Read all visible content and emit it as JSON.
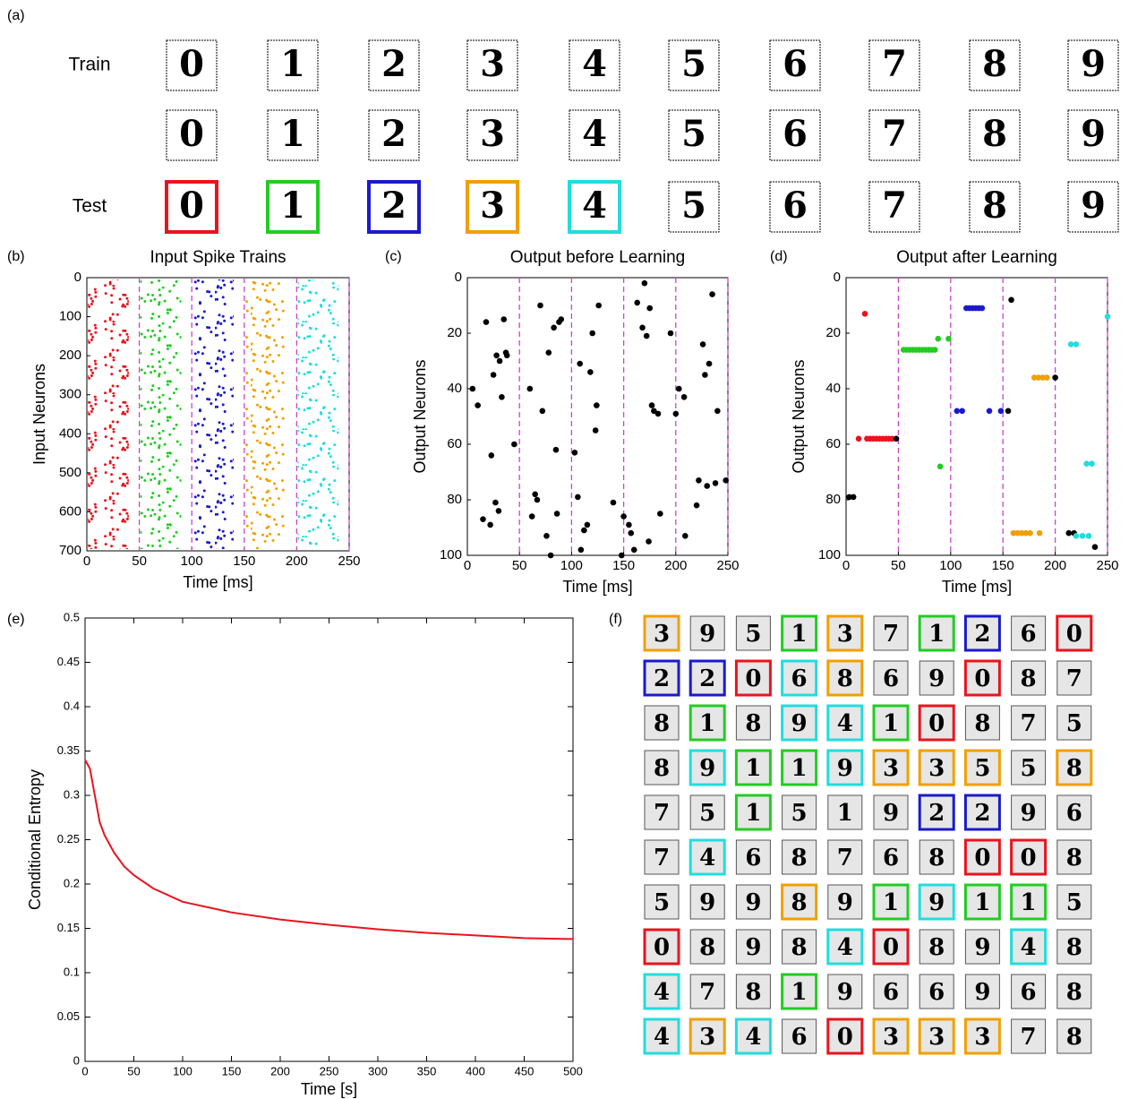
{
  "panel_a": {
    "label": "(a)",
    "row_labels": [
      "Train",
      null,
      "Test"
    ],
    "rows": [
      [
        {
          "digit": "0",
          "border": null,
          "ink": "#000"
        },
        {
          "digit": "1",
          "border": null,
          "ink": "#000"
        },
        {
          "digit": "2",
          "border": null,
          "ink": "#000"
        },
        {
          "digit": "3",
          "border": null,
          "ink": "#000"
        },
        {
          "digit": "4",
          "border": null,
          "ink": "#000"
        },
        {
          "digit": "5",
          "border": null,
          "ink": "#000"
        },
        {
          "digit": "6",
          "border": null,
          "ink": "#000"
        },
        {
          "digit": "7",
          "border": null,
          "ink": "#000"
        },
        {
          "digit": "8",
          "border": null,
          "ink": "#000"
        },
        {
          "digit": "9",
          "border": null,
          "ink": "#000"
        }
      ],
      [
        {
          "digit": "0",
          "border": null,
          "ink": "#000"
        },
        {
          "digit": "1",
          "border": null,
          "ink": "#000"
        },
        {
          "digit": "2",
          "border": null,
          "ink": "#000"
        },
        {
          "digit": "3",
          "border": null,
          "ink": "#000"
        },
        {
          "digit": "4",
          "border": null,
          "ink": "#000"
        },
        {
          "digit": "5",
          "border": null,
          "ink": "#000"
        },
        {
          "digit": "6",
          "border": null,
          "ink": "#000"
        },
        {
          "digit": "7",
          "border": null,
          "ink": "#000"
        },
        {
          "digit": "8",
          "border": null,
          "ink": "#000"
        },
        {
          "digit": "9",
          "border": null,
          "ink": "#000"
        }
      ],
      [
        {
          "digit": "0",
          "border": "#e8141e",
          "ink": "#000"
        },
        {
          "digit": "1",
          "border": "#22cc22",
          "ink": "#000"
        },
        {
          "digit": "2",
          "border": "#1a1acc",
          "ink": "#000"
        },
        {
          "digit": "3",
          "border": "#f0a000",
          "ink": "#000"
        },
        {
          "digit": "4",
          "border": "#22dddd",
          "ink": "#000"
        },
        {
          "digit": "5",
          "border": null,
          "ink": "#aaa"
        },
        {
          "digit": "6",
          "border": null,
          "ink": "#aaa"
        },
        {
          "digit": "7",
          "border": null,
          "ink": "#aaa"
        },
        {
          "digit": "8",
          "border": null,
          "ink": "#aaa"
        },
        {
          "digit": "9",
          "border": null,
          "ink": "#aaa"
        }
      ]
    ]
  },
  "chart_data": [
    {
      "type": "raster",
      "panel_label": "(b)",
      "title": "Input Spike Trains",
      "x_label": "Time [ms]",
      "y_label": "Input Neurons",
      "xlim": [
        0,
        250
      ],
      "xticks": [
        0,
        50,
        100,
        150,
        200,
        250
      ],
      "ylim": [
        0,
        700
      ],
      "yticks": [
        0,
        100,
        200,
        300,
        400,
        500,
        600,
        700
      ],
      "y_reversed": true,
      "dividers": [
        50,
        100,
        150,
        200,
        250
      ],
      "divider_color": "#cc44cc",
      "bands": [
        {
          "color": "#e8141e",
          "interval": [
            1,
            40
          ]
        },
        {
          "color": "#22cc22",
          "interval": [
            51,
            90
          ]
        },
        {
          "color": "#1a1acc",
          "interval": [
            101,
            140
          ]
        },
        {
          "color": "#f0a000",
          "interval": [
            151,
            190
          ]
        },
        {
          "color": "#22dddd",
          "interval": [
            201,
            240
          ]
        }
      ]
    },
    {
      "type": "scatter",
      "panel_label": "(c)",
      "title": "Output before Learning",
      "x_label": "Time [ms]",
      "y_label": "Output Neurons",
      "xlim": [
        0,
        250
      ],
      "xticks": [
        0,
        50,
        100,
        150,
        200,
        250
      ],
      "ylim": [
        0,
        100
      ],
      "yticks": [
        0,
        20,
        40,
        60,
        80,
        100
      ],
      "y_reversed": true,
      "dividers": [
        50,
        100,
        150,
        200,
        250
      ],
      "divider_color": "#cc44cc",
      "series": [
        {
          "color": "#000",
          "x": [
            5,
            10,
            15,
            18,
            22,
            23,
            25,
            27,
            28,
            30,
            31,
            33,
            35,
            37,
            38,
            45,
            60,
            62,
            65,
            67,
            70,
            72,
            76,
            78,
            80,
            83,
            85,
            86,
            88,
            90,
            103,
            106,
            108,
            109,
            112,
            115,
            118,
            120,
            123,
            124,
            126,
            140,
            148,
            150,
            155,
            157,
            160,
            163,
            168,
            170,
            172,
            174,
            175,
            177,
            179,
            183,
            185,
            195,
            200,
            203,
            208,
            209,
            220,
            222,
            226,
            228,
            230,
            232,
            235,
            238,
            240,
            248
          ],
          "values": [
            40,
            46,
            87,
            16,
            89,
            64,
            35,
            81,
            28,
            84,
            30,
            43,
            15,
            27,
            28,
            60,
            40,
            86,
            78,
            80,
            10,
            48,
            93,
            27,
            100,
            18,
            62,
            85,
            16,
            15,
            63,
            79,
            31,
            98,
            91,
            89,
            34,
            20,
            55,
            46,
            10,
            81,
            100,
            86,
            89,
            92,
            98,
            9,
            18,
            2,
            21,
            95,
            11,
            46,
            48,
            49,
            85,
            20,
            49,
            40,
            43,
            93,
            82,
            73,
            24,
            35,
            75,
            31,
            6,
            74,
            48,
            73
          ]
        }
      ]
    },
    {
      "type": "scatter",
      "panel_label": "(d)",
      "title": "Output after Learning",
      "x_label": "Time [ms]",
      "y_label": "Output Neurons",
      "xlim": [
        0,
        250
      ],
      "xticks": [
        0,
        50,
        100,
        150,
        200,
        250
      ],
      "ylim": [
        0,
        100
      ],
      "yticks": [
        0,
        20,
        40,
        60,
        80,
        100
      ],
      "y_reversed": true,
      "dividers": [
        50,
        100,
        150,
        200,
        250
      ],
      "divider_color": "#cc44cc",
      "series": [
        {
          "color": "#e8141e",
          "x": [
            12,
            18,
            20,
            23,
            26,
            29,
            32,
            35,
            38,
            41,
            44
          ],
          "values": [
            58,
            13,
            58,
            58,
            58,
            58,
            58,
            58,
            58,
            58,
            58
          ]
        },
        {
          "color": "#000",
          "x": [
            3,
            7,
            48,
            158,
            155,
            200,
            213,
            218,
            238
          ],
          "values": [
            79,
            79,
            58,
            8,
            48,
            36,
            92,
            92,
            97
          ]
        },
        {
          "color": "#22cc22",
          "x": [
            55,
            58,
            61,
            64,
            67,
            70,
            73,
            76,
            79,
            82,
            85,
            88,
            98,
            90
          ],
          "values": [
            26,
            26,
            26,
            26,
            26,
            26,
            26,
            26,
            26,
            26,
            26,
            22,
            22,
            68
          ]
        },
        {
          "color": "#1a1acc",
          "x": [
            106,
            111,
            115,
            118,
            121,
            124,
            127,
            130,
            137,
            148
          ],
          "values": [
            48,
            48,
            11,
            11,
            11,
            11,
            11,
            11,
            48,
            48
          ]
        },
        {
          "color": "#f0a000",
          "x": [
            180,
            184,
            188,
            192,
            160,
            164,
            168,
            172,
            176,
            185
          ],
          "values": [
            36,
            36,
            36,
            36,
            92,
            92,
            92,
            92,
            92,
            92
          ]
        },
        {
          "color": "#22dddd",
          "x": [
            215,
            220,
            230,
            235,
            250,
            220,
            226,
            232
          ],
          "values": [
            24,
            24,
            67,
            67,
            14,
            93,
            93,
            93
          ]
        }
      ]
    },
    {
      "type": "line",
      "panel_label": "(e)",
      "x_label": "Time [s]",
      "y_label": "Conditional Entropy",
      "xlim": [
        0,
        500
      ],
      "xticks": [
        0,
        50,
        100,
        150,
        200,
        250,
        300,
        350,
        400,
        450,
        500
      ],
      "ylim": [
        0,
        0.5
      ],
      "yticks": [
        0,
        0.05,
        0.1,
        0.15,
        0.2,
        0.25,
        0.3,
        0.35,
        0.4,
        0.45,
        0.5
      ],
      "color": "#e8141e",
      "x": [
        0,
        5,
        10,
        15,
        20,
        30,
        40,
        50,
        70,
        100,
        150,
        200,
        250,
        300,
        350,
        400,
        450,
        500
      ],
      "values": [
        0.34,
        0.33,
        0.3,
        0.27,
        0.255,
        0.235,
        0.22,
        0.21,
        0.195,
        0.18,
        0.168,
        0.16,
        0.154,
        0.149,
        0.145,
        0.142,
        0.139,
        0.138
      ]
    }
  ],
  "panel_f": {
    "label": "(f)",
    "border_colors": {
      "r": "#e8141e",
      "g": "#22cc22",
      "b": "#1a1acc",
      "o": "#f0a000",
      "c": "#22dddd"
    },
    "grid": [
      [
        [
          "3",
          "o"
        ],
        [
          "9",
          null
        ],
        [
          "5",
          null
        ],
        [
          "1",
          "g"
        ],
        [
          "3",
          "o"
        ],
        [
          "7",
          null
        ],
        [
          "1",
          "g"
        ],
        [
          "2",
          "b"
        ],
        [
          "6",
          null
        ],
        [
          "0",
          "r"
        ]
      ],
      [
        [
          "2",
          "b"
        ],
        [
          "2",
          "b"
        ],
        [
          "0",
          "r"
        ],
        [
          "6",
          "c"
        ],
        [
          "8",
          "o"
        ],
        [
          "6",
          null
        ],
        [
          "9",
          null
        ],
        [
          "0",
          "r"
        ],
        [
          "8",
          null
        ],
        [
          "7",
          null
        ]
      ],
      [
        [
          "8",
          null
        ],
        [
          "1",
          "g"
        ],
        [
          "8",
          null
        ],
        [
          "9",
          "c"
        ],
        [
          "4",
          "c"
        ],
        [
          "1",
          "g"
        ],
        [
          "0",
          "r"
        ],
        [
          "8",
          null
        ],
        [
          "7",
          null
        ],
        [
          "5",
          null
        ]
      ],
      [
        [
          "8",
          null
        ],
        [
          "9",
          "c"
        ],
        [
          "1",
          "g"
        ],
        [
          "1",
          "g"
        ],
        [
          "9",
          "c"
        ],
        [
          "3",
          "o"
        ],
        [
          "3",
          "o"
        ],
        [
          "5",
          "o"
        ],
        [
          "5",
          null
        ],
        [
          "8",
          "o"
        ]
      ],
      [
        [
          "7",
          null
        ],
        [
          "5",
          null
        ],
        [
          "1",
          "g"
        ],
        [
          "5",
          null
        ],
        [
          "1",
          null
        ],
        [
          "9",
          null
        ],
        [
          "2",
          "b"
        ],
        [
          "2",
          "b"
        ],
        [
          "9",
          null
        ],
        [
          "6",
          null
        ]
      ],
      [
        [
          "7",
          null
        ],
        [
          "4",
          "c"
        ],
        [
          "6",
          null
        ],
        [
          "8",
          null
        ],
        [
          "7",
          null
        ],
        [
          "6",
          null
        ],
        [
          "8",
          null
        ],
        [
          "0",
          "r"
        ],
        [
          "0",
          "r"
        ],
        [
          "8",
          null
        ]
      ],
      [
        [
          "5",
          null
        ],
        [
          "9",
          null
        ],
        [
          "9",
          null
        ],
        [
          "8",
          "o"
        ],
        [
          "9",
          null
        ],
        [
          "1",
          "g"
        ],
        [
          "9",
          "c"
        ],
        [
          "1",
          "g"
        ],
        [
          "1",
          "g"
        ],
        [
          "5",
          null
        ]
      ],
      [
        [
          "0",
          "r"
        ],
        [
          "8",
          null
        ],
        [
          "9",
          null
        ],
        [
          "8",
          null
        ],
        [
          "4",
          "c"
        ],
        [
          "0",
          "r"
        ],
        [
          "8",
          null
        ],
        [
          "9",
          null
        ],
        [
          "4",
          "c"
        ],
        [
          "8",
          null
        ]
      ],
      [
        [
          "4",
          "c"
        ],
        [
          "7",
          null
        ],
        [
          "8",
          null
        ],
        [
          "1",
          "g"
        ],
        [
          "9",
          null
        ],
        [
          "6",
          null
        ],
        [
          "6",
          null
        ],
        [
          "9",
          null
        ],
        [
          "6",
          null
        ],
        [
          "8",
          null
        ]
      ],
      [
        [
          "4",
          "c"
        ],
        [
          "3",
          "o"
        ],
        [
          "4",
          "c"
        ],
        [
          "6",
          null
        ],
        [
          "0",
          "r"
        ],
        [
          "3",
          "o"
        ],
        [
          "3",
          "o"
        ],
        [
          "3",
          "o"
        ],
        [
          "7",
          null
        ],
        [
          "8",
          null
        ]
      ]
    ]
  }
}
